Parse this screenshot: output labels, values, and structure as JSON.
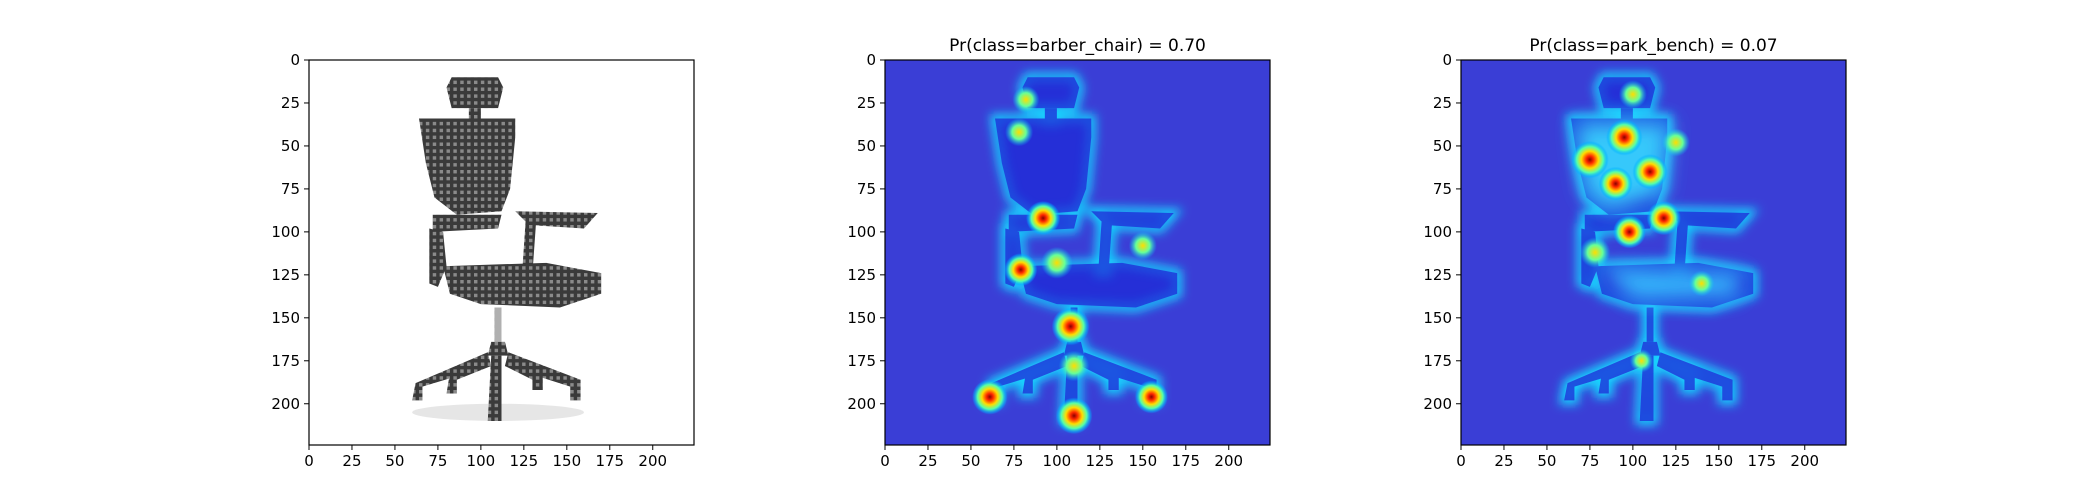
{
  "chart_data": [
    {
      "type": "image",
      "image": "office-chair",
      "title": "",
      "xlim": [
        0,
        224
      ],
      "ylim": [
        224,
        0
      ],
      "xticks": [
        0,
        25,
        50,
        75,
        100,
        125,
        150,
        175,
        200
      ],
      "yticks": [
        0,
        25,
        50,
        75,
        100,
        125,
        150,
        175,
        200
      ],
      "xticklabels": [
        "0",
        "25",
        "50",
        "75",
        "100",
        "125",
        "150",
        "175",
        "200"
      ],
      "yticklabels": [
        "0",
        "25",
        "50",
        "75",
        "100",
        "125",
        "150",
        "175",
        "200"
      ]
    },
    {
      "type": "heatmap",
      "title": "Pr(class=barber_chair) =  0.70",
      "class_name": "barber_chair",
      "probability": 0.7,
      "colormap": "jet",
      "xlim": [
        0,
        224
      ],
      "ylim": [
        224,
        0
      ],
      "xticks": [
        0,
        25,
        50,
        75,
        100,
        125,
        150,
        175,
        200
      ],
      "yticks": [
        0,
        25,
        50,
        75,
        100,
        125,
        150,
        175,
        200
      ],
      "xticklabels": [
        "0",
        "25",
        "50",
        "75",
        "100",
        "125",
        "150",
        "175",
        "200"
      ],
      "yticklabels": [
        "0",
        "25",
        "50",
        "75",
        "100",
        "125",
        "150",
        "175",
        "200"
      ],
      "hotspots": [
        {
          "x": 108,
          "y": 155,
          "v": 1.0
        },
        {
          "x": 110,
          "y": 207,
          "v": 0.95
        },
        {
          "x": 61,
          "y": 196,
          "v": 0.9
        },
        {
          "x": 155,
          "y": 196,
          "v": 0.8
        },
        {
          "x": 92,
          "y": 92,
          "v": 0.85
        },
        {
          "x": 79,
          "y": 122,
          "v": 0.8
        },
        {
          "x": 100,
          "y": 118,
          "v": 0.75
        },
        {
          "x": 110,
          "y": 178,
          "v": 0.7
        },
        {
          "x": 78,
          "y": 42,
          "v": 0.6
        },
        {
          "x": 82,
          "y": 23,
          "v": 0.55
        },
        {
          "x": 150,
          "y": 108,
          "v": 0.6
        }
      ]
    },
    {
      "type": "heatmap",
      "title": "Pr(class=park_bench) =  0.07",
      "class_name": "park_bench",
      "probability": 0.07,
      "colormap": "jet",
      "xlim": [
        0,
        224
      ],
      "ylim": [
        224,
        0
      ],
      "xticks": [
        0,
        25,
        50,
        75,
        100,
        125,
        150,
        175,
        200
      ],
      "yticks": [
        0,
        25,
        50,
        75,
        100,
        125,
        150,
        175,
        200
      ],
      "xticklabels": [
        "0",
        "25",
        "50",
        "75",
        "100",
        "125",
        "150",
        "175",
        "200"
      ],
      "yticklabels": [
        "0",
        "25",
        "50",
        "75",
        "100",
        "125",
        "150",
        "175",
        "200"
      ],
      "hotspots": [
        {
          "x": 75,
          "y": 58,
          "v": 1.0
        },
        {
          "x": 95,
          "y": 45,
          "v": 0.95
        },
        {
          "x": 110,
          "y": 65,
          "v": 0.9
        },
        {
          "x": 90,
          "y": 72,
          "v": 0.85
        },
        {
          "x": 118,
          "y": 92,
          "v": 0.85
        },
        {
          "x": 98,
          "y": 100,
          "v": 0.8
        },
        {
          "x": 78,
          "y": 112,
          "v": 0.7
        },
        {
          "x": 125,
          "y": 48,
          "v": 0.6
        },
        {
          "x": 100,
          "y": 20,
          "v": 0.6
        },
        {
          "x": 140,
          "y": 130,
          "v": 0.5
        },
        {
          "x": 105,
          "y": 175,
          "v": 0.4
        }
      ]
    }
  ]
}
